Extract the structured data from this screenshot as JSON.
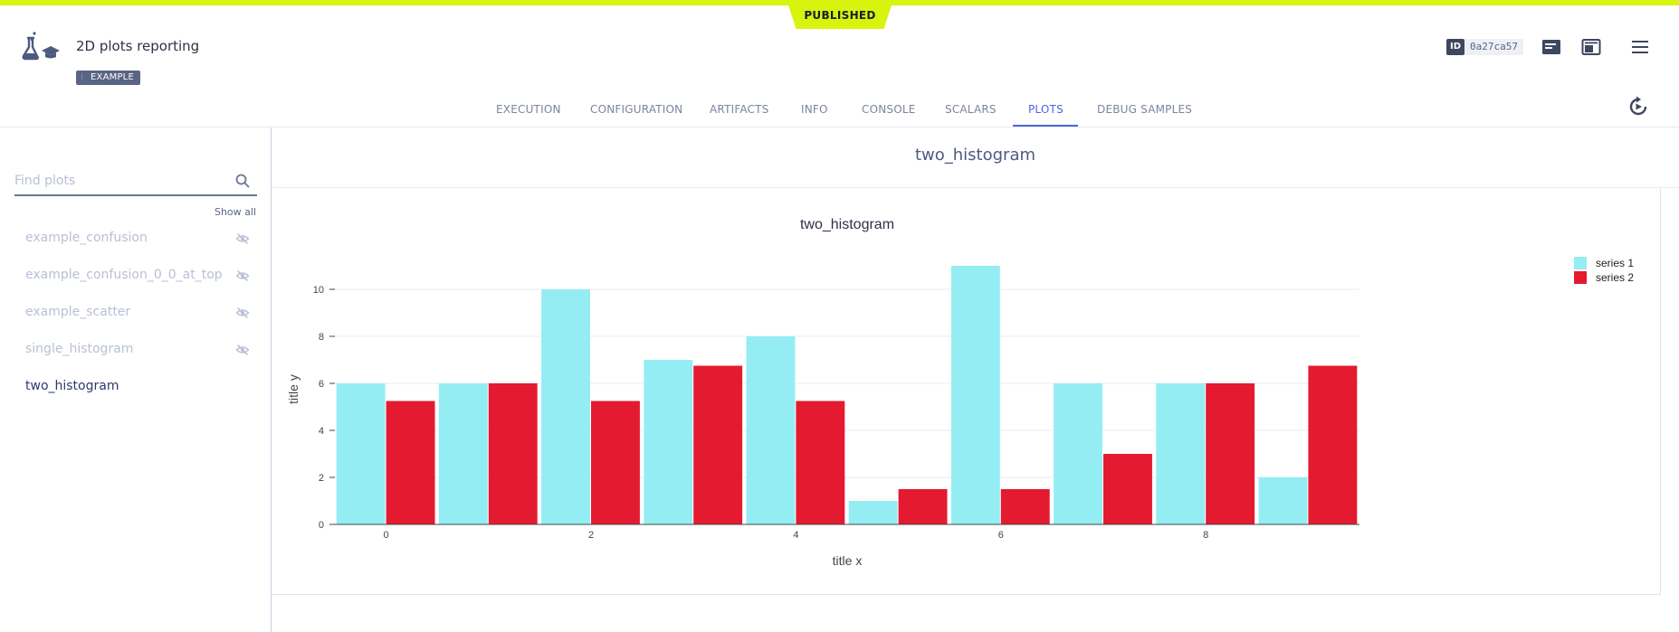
{
  "header": {
    "status": "PUBLISHED",
    "title": "2D plots reporting",
    "tag": "EXAMPLE",
    "id_label": "ID",
    "id_value": "0a27ca57"
  },
  "tabs": [
    {
      "label": "EXECUTION"
    },
    {
      "label": "CONFIGURATION"
    },
    {
      "label": "ARTIFACTS"
    },
    {
      "label": "INFO"
    },
    {
      "label": "CONSOLE"
    },
    {
      "label": "SCALARS"
    },
    {
      "label": "PLOTS",
      "active": true
    },
    {
      "label": "DEBUG SAMPLES"
    }
  ],
  "sidebar": {
    "search_placeholder": "Find plots",
    "show_all": "Show all",
    "items": [
      {
        "label": "example_confusion",
        "hidden": true
      },
      {
        "label": "example_confusion_0_0_at_top",
        "hidden": true
      },
      {
        "label": "example_scatter",
        "hidden": true
      },
      {
        "label": "single_histogram",
        "hidden": true
      },
      {
        "label": "two_histogram",
        "hidden": false
      }
    ]
  },
  "panel": {
    "title": "two_histogram"
  },
  "colors": {
    "accent": "#4d66dc",
    "status": "#d6f40e",
    "series1": "#95edf4",
    "series2": "#e41a30"
  },
  "chart_data": {
    "type": "bar",
    "title": "two_histogram",
    "xlabel": "title x",
    "ylabel": "title y",
    "x": [
      0,
      1,
      2,
      3,
      4,
      5,
      6,
      7,
      8,
      9
    ],
    "xticks": [
      0,
      2,
      4,
      6,
      8
    ],
    "yticks": [
      0,
      2,
      4,
      6,
      8,
      10
    ],
    "ylim": [
      0,
      11.5
    ],
    "xlim": [
      -0.5,
      9.5
    ],
    "legend_position": "top-right",
    "grid": true,
    "series": [
      {
        "name": "series 1",
        "color": "#95edf4",
        "values": [
          6,
          6,
          10,
          7,
          8,
          1,
          11,
          6,
          6,
          2
        ]
      },
      {
        "name": "series 2",
        "color": "#e41a30",
        "values": [
          5.25,
          6,
          5.25,
          6.75,
          5.25,
          1.5,
          1.5,
          3,
          6,
          6.75
        ]
      }
    ]
  }
}
